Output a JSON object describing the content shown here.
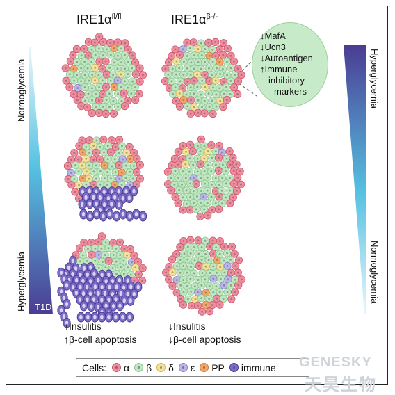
{
  "columns": {
    "left": {
      "base": "IRE1α",
      "sup": "fl/fl"
    },
    "right": {
      "base": "IRE1α",
      "sup": "β-/-"
    }
  },
  "left_axis": {
    "top": "Normoglycemia",
    "bottom": "Hyperglycemia",
    "tag": "T1D"
  },
  "right_axis": {
    "top": "Hyperglycemia",
    "bottom": "Normoglycemia"
  },
  "bubble": {
    "lines": [
      "↓MafA",
      "↓Ucn3",
      "↓Autoantigen",
      "↑Immune",
      "inhibitory",
      "markers"
    ]
  },
  "footnotes": {
    "left": [
      "↑Insulitis",
      "↑β-cell apoptosis"
    ],
    "right": [
      "↓Insulitis",
      "↓β-cell apoptosis"
    ]
  },
  "legend": {
    "label": "Cells:",
    "items": [
      {
        "key": "alpha",
        "text": "α",
        "color": "#ef8d9e"
      },
      {
        "key": "beta",
        "text": "β",
        "color": "#bfe7c1"
      },
      {
        "key": "delta",
        "text": "δ",
        "color": "#f3e29a"
      },
      {
        "key": "epsilon",
        "text": "ε",
        "color": "#b9b6e8"
      },
      {
        "key": "pp",
        "text": "PP",
        "color": "#f3a66a"
      },
      {
        "key": "immune",
        "text": "immune",
        "color": "#7c6cc4"
      }
    ]
  },
  "watermark": {
    "brand": "GENESKY",
    "cn": "天昊生物"
  }
}
